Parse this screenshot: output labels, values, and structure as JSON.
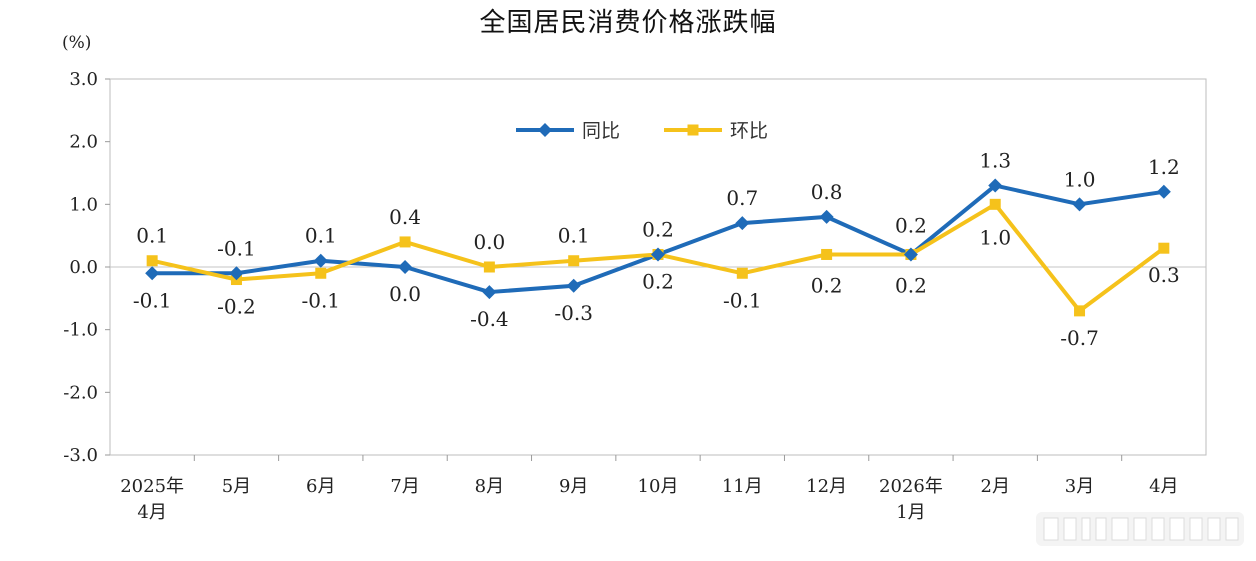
{
  "title": "全国居民消费价格涨跌幅",
  "unit": "(%)",
  "chart_data": {
    "type": "line",
    "title": "全国居民消费价格涨跌幅",
    "ylabel": "(%)",
    "ylim": [
      -3.0,
      3.0
    ],
    "yticks": [
      "3.0",
      "2.0",
      "1.0",
      "0.0",
      "-1.0",
      "-2.0",
      "-3.0"
    ],
    "ytick_values": [
      3,
      2,
      1,
      0,
      -1,
      -2,
      -3
    ],
    "categories": [
      [
        "2025年",
        "4月"
      ],
      [
        "5月"
      ],
      [
        "6月"
      ],
      [
        "7月"
      ],
      [
        "8月"
      ],
      [
        "9月"
      ],
      [
        "10月"
      ],
      [
        "11月"
      ],
      [
        "12月"
      ],
      [
        "2026年",
        "1月"
      ],
      [
        "2月"
      ],
      [
        "3月"
      ],
      [
        "4月"
      ]
    ],
    "legend_position": "top-center",
    "grid": false,
    "series": [
      {
        "name": "同比",
        "color": "#1f6bb8",
        "marker": "diamond",
        "values": [
          -0.1,
          -0.1,
          0.1,
          0.0,
          -0.4,
          -0.3,
          0.2,
          0.7,
          0.8,
          0.2,
          1.3,
          1.0,
          1.2
        ],
        "labels": [
          "-0.1",
          "-0.1",
          "0.1",
          "0.0",
          "-0.4",
          "-0.3",
          "0.2",
          "0.7",
          "0.8",
          "0.2",
          "1.3",
          "1.0",
          "1.2"
        ]
      },
      {
        "name": "环比",
        "color": "#f5c21b",
        "marker": "square",
        "values": [
          0.1,
          -0.2,
          -0.1,
          0.4,
          0.0,
          0.1,
          0.2,
          -0.1,
          0.2,
          0.2,
          1.0,
          -0.7,
          0.3
        ],
        "labels": [
          "0.1",
          "-0.2",
          "-0.1",
          "0.4",
          "0.0",
          "0.1",
          "0.2",
          "-0.1",
          "0.2",
          "0.2",
          "1.0",
          "-0.7",
          "0.3"
        ]
      }
    ]
  }
}
